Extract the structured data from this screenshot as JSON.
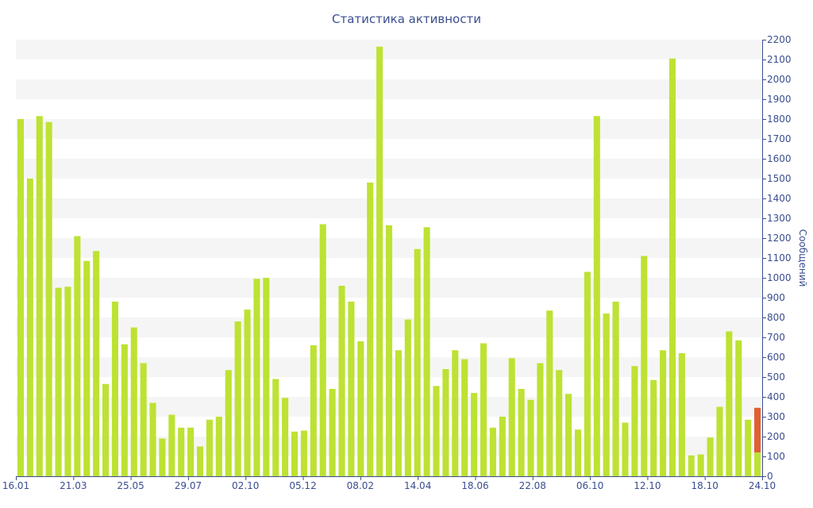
{
  "chart_data": {
    "type": "bar",
    "title": "Статистика активности",
    "ylabel": "Сообщений",
    "xlabel": "",
    "ylim": [
      0,
      2200
    ],
    "y_ticks": [
      0,
      100,
      200,
      300,
      400,
      500,
      600,
      700,
      800,
      900,
      1000,
      1100,
      1200,
      1300,
      1400,
      1500,
      1600,
      1700,
      1800,
      1900,
      2000,
      2100,
      2200
    ],
    "x_tick_labels": [
      "16.01",
      "21.03",
      "25.05",
      "29.07",
      "02.10",
      "05.12",
      "08.02",
      "14.04",
      "18.06",
      "22.08",
      "06.10",
      "12.10",
      "18.10",
      "24.10"
    ],
    "grid": "horizontal alternating bands",
    "colors": {
      "bar": "#bde233",
      "highlight": "#e06030",
      "band": "#f5f5f5",
      "axis": "#3a4d8f"
    },
    "values": [
      1800,
      1500,
      1815,
      1785,
      950,
      955,
      1210,
      1085,
      1135,
      465,
      880,
      665,
      750,
      570,
      370,
      190,
      310,
      245,
      245,
      150,
      285,
      300,
      535,
      780,
      840,
      995,
      1000,
      490,
      395,
      225,
      230,
      660,
      1270,
      440,
      960,
      880,
      680,
      1480,
      2165,
      1265,
      635,
      790,
      1145,
      1255,
      455,
      540,
      635,
      590,
      420,
      670,
      245,
      300,
      595,
      440,
      385,
      570,
      835,
      535,
      415,
      235,
      1030,
      1815,
      820,
      880,
      270,
      555,
      1110,
      485,
      635,
      2105,
      620,
      105,
      110,
      195,
      350,
      730,
      685,
      285,
      120
    ],
    "series": [
      {
        "name": "",
        "color": "#bde233"
      }
    ],
    "highlight_last": {
      "value": 225
    }
  }
}
